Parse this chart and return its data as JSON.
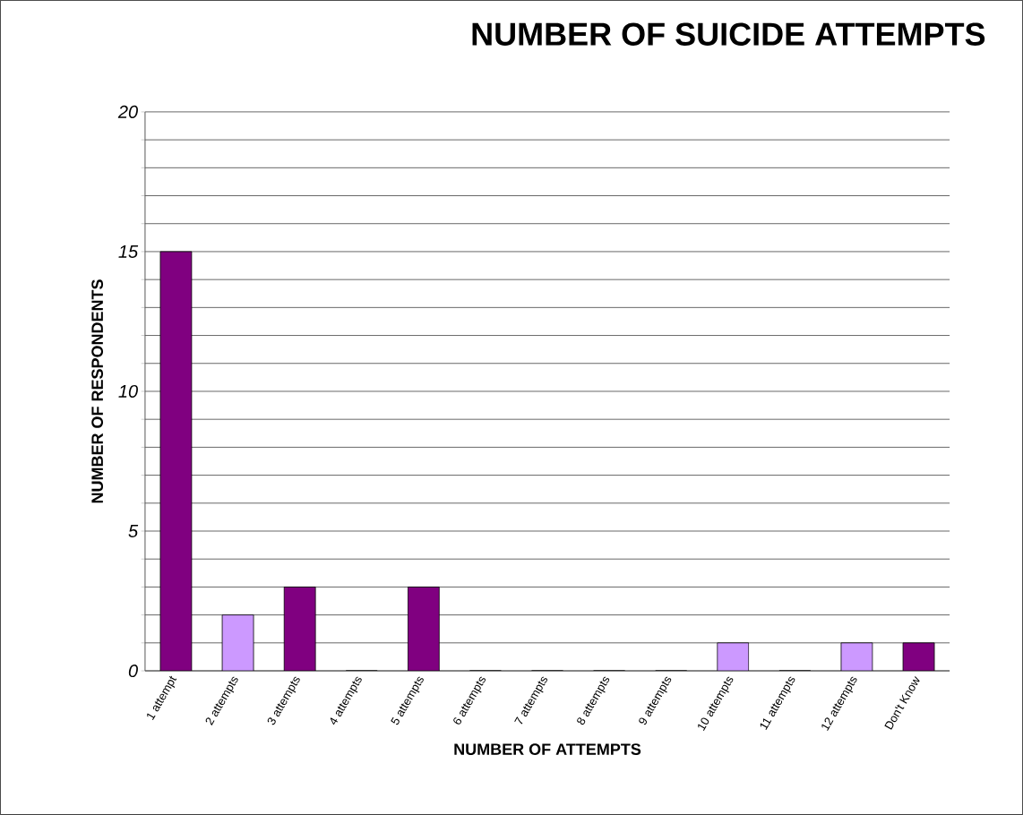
{
  "chart_data": {
    "type": "bar",
    "title": "NUMBER OF SUICIDE ATTEMPTS",
    "xlabel": "NUMBER OF ATTEMPTS",
    "ylabel": "NUMBER OF RESPONDENTS",
    "categories": [
      "1 attempt",
      "2 attempts",
      "3 attempts",
      "4 attempts",
      "5 attempts",
      "6 attempts",
      "7 attempts",
      "8 attempts",
      "9 attempts",
      "10 attempts",
      "11 attempts",
      "12 attempts",
      "Don't Know"
    ],
    "values": [
      15,
      2,
      3,
      0,
      3,
      0,
      0,
      0,
      0,
      1,
      0,
      1,
      1
    ],
    "colors": [
      "#800080",
      "#cc99ff",
      "#800080",
      "#cc99ff",
      "#800080",
      "#cc99ff",
      "#800080",
      "#cc99ff",
      "#800080",
      "#cc99ff",
      "#800080",
      "#cc99ff",
      "#800080"
    ],
    "ylim": [
      0,
      20
    ],
    "yticks": [
      0,
      {
        "value": 1,
        "label": null
      },
      {
        "value": 2,
        "label": null
      },
      {
        "value": 3,
        "label": null
      },
      {
        "value": 4,
        "label": null
      },
      5,
      {
        "value": 6,
        "label": null
      },
      {
        "value": 7,
        "label": null
      },
      {
        "value": 8,
        "label": null
      },
      {
        "value": 9,
        "label": null
      },
      10,
      {
        "value": 11,
        "label": null
      },
      {
        "value": 12,
        "label": null
      },
      {
        "value": 13,
        "label": null
      },
      {
        "value": 14,
        "label": null
      },
      15,
      {
        "value": 16,
        "label": null
      },
      {
        "value": 17,
        "label": null
      },
      {
        "value": 18,
        "label": null
      },
      {
        "value": 19,
        "label": null
      },
      20
    ],
    "grid": "y"
  }
}
